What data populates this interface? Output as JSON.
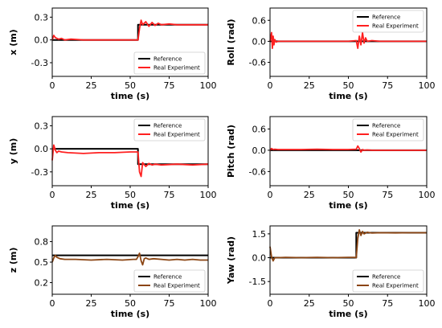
{
  "chart_data": [
    {
      "type": "line",
      "ylabel": "x (m)",
      "xlabel": "time (s)",
      "xlim": [
        0,
        100
      ],
      "ylim": [
        -0.48,
        0.42
      ],
      "xticks": [
        "0",
        "25",
        "50",
        "75",
        "100"
      ],
      "yticks": [
        "-0.3",
        "0.0",
        "0.3"
      ],
      "ytick_values": [
        -0.3,
        0.0,
        0.3
      ],
      "legend": "bottom-right",
      "grid": false,
      "series": [
        {
          "name": "Reference",
          "color": "#000000",
          "x": [
            0,
            55,
            55,
            100
          ],
          "y": [
            0.0,
            0.0,
            0.2,
            0.2
          ]
        },
        {
          "name": "Real Experiment",
          "color": "#ff2020",
          "x": [
            0,
            1,
            2,
            4,
            6,
            8,
            12,
            20,
            30,
            40,
            50,
            54,
            55,
            56,
            57,
            58,
            60,
            62,
            64,
            66,
            68,
            70,
            75,
            80,
            90,
            100
          ],
          "y": [
            0.0,
            0.06,
            0.03,
            0.01,
            0.02,
            0.0,
            0.01,
            0.0,
            0.0,
            0.0,
            0.0,
            0.0,
            0.0,
            0.15,
            0.26,
            0.2,
            0.24,
            0.18,
            0.23,
            0.19,
            0.22,
            0.2,
            0.21,
            0.2,
            0.2,
            0.2
          ]
        }
      ]
    },
    {
      "type": "line",
      "ylabel": "Roll (rad)",
      "xlabel": "time (s)",
      "xlim": [
        0,
        100
      ],
      "ylim": [
        -1.0,
        0.95
      ],
      "xticks": [
        "0",
        "25",
        "50",
        "75",
        "100"
      ],
      "yticks": [
        "-0.6",
        "0.0",
        "0.6"
      ],
      "ytick_values": [
        -0.6,
        0.0,
        0.6
      ],
      "legend": "top-right",
      "grid": false,
      "series": [
        {
          "name": "Reference",
          "color": "#000000",
          "x": [
            0,
            100
          ],
          "y": [
            0.0,
            0.0
          ]
        },
        {
          "name": "Real Experiment",
          "color": "#ff2020",
          "x": [
            0,
            1,
            1.5,
            2,
            2.5,
            3,
            4,
            5,
            10,
            20,
            30,
            40,
            50,
            55,
            56,
            57,
            58,
            59,
            60,
            61,
            62,
            65,
            70,
            80,
            90,
            100
          ],
          "y": [
            0.0,
            0.25,
            -0.2,
            0.15,
            -0.1,
            0.05,
            -0.02,
            0.0,
            0.0,
            0.0,
            0.0,
            0.0,
            0.0,
            0.02,
            -0.2,
            0.15,
            -0.1,
            0.25,
            -0.05,
            0.1,
            0.0,
            0.02,
            0.0,
            0.0,
            0.0,
            0.0
          ]
        }
      ]
    },
    {
      "type": "line",
      "ylabel": "y (m)",
      "xlabel": "time (s)",
      "xlim": [
        0,
        100
      ],
      "ylim": [
        -0.48,
        0.42
      ],
      "xticks": [
        "0",
        "25",
        "50",
        "75",
        "100"
      ],
      "yticks": [
        "-0.3",
        "0.0",
        "0.3"
      ],
      "ytick_values": [
        -0.3,
        0.0,
        0.3
      ],
      "legend": "top-right",
      "grid": false,
      "series": [
        {
          "name": "Reference",
          "color": "#000000",
          "x": [
            0,
            55,
            55,
            100
          ],
          "y": [
            0.0,
            0.0,
            -0.2,
            -0.2
          ]
        },
        {
          "name": "Real Experiment",
          "color": "#ff2020",
          "x": [
            0,
            1,
            2,
            3,
            4,
            6,
            10,
            20,
            30,
            40,
            50,
            54,
            55,
            56,
            57,
            58,
            60,
            62,
            64,
            66,
            70,
            80,
            90,
            100
          ],
          "y": [
            -0.15,
            0.05,
            -0.02,
            -0.05,
            -0.03,
            -0.04,
            -0.05,
            -0.06,
            -0.05,
            -0.05,
            -0.04,
            -0.04,
            -0.04,
            -0.3,
            -0.36,
            -0.18,
            -0.23,
            -0.19,
            -0.21,
            -0.2,
            -0.21,
            -0.2,
            -0.21,
            -0.2
          ]
        }
      ]
    },
    {
      "type": "line",
      "ylabel": "Pitch (rad)",
      "xlabel": "time (s)",
      "xlim": [
        0,
        100
      ],
      "ylim": [
        -1.0,
        0.95
      ],
      "xticks": [
        "0",
        "25",
        "50",
        "75",
        "100"
      ],
      "yticks": [
        "-0.6",
        "0.0",
        "0.6"
      ],
      "ytick_values": [
        -0.6,
        0.0,
        0.6
      ],
      "legend": "top-right",
      "grid": false,
      "series": [
        {
          "name": "Reference",
          "color": "#000000",
          "x": [
            0,
            100
          ],
          "y": [
            0.0,
            0.0
          ]
        },
        {
          "name": "Real Experiment",
          "color": "#ff2020",
          "x": [
            0,
            1,
            2,
            3,
            5,
            10,
            20,
            30,
            40,
            50,
            55,
            56,
            57,
            58,
            59,
            60,
            62,
            65,
            70,
            80,
            90,
            100
          ],
          "y": [
            0.0,
            0.05,
            0.02,
            0.03,
            0.02,
            0.02,
            0.02,
            0.03,
            0.02,
            0.02,
            0.03,
            0.12,
            0.05,
            -0.05,
            0.02,
            0.0,
            0.01,
            0.0,
            0.0,
            0.0,
            0.0,
            0.0
          ]
        }
      ]
    },
    {
      "type": "line",
      "ylabel": "z (m)",
      "xlabel": "time (s)",
      "xlim": [
        0,
        100
      ],
      "ylim": [
        0.03,
        1.03
      ],
      "xticks": [
        "0",
        "25",
        "50",
        "75",
        "100"
      ],
      "yticks": [
        "0.2",
        "0.5",
        "0.8"
      ],
      "ytick_values": [
        0.2,
        0.5,
        0.8
      ],
      "legend": "bottom-right",
      "grid": false,
      "series": [
        {
          "name": "Reference",
          "color": "#000000",
          "x": [
            0,
            100
          ],
          "y": [
            0.6,
            0.6
          ]
        },
        {
          "name": "Real Experiment",
          "color": "#8b4513",
          "x": [
            0,
            1,
            2,
            3,
            5,
            8,
            15,
            25,
            35,
            45,
            52,
            54,
            55,
            56,
            57,
            58,
            59,
            60,
            62,
            65,
            70,
            75,
            80,
            85,
            90,
            95,
            100
          ],
          "y": [
            0.5,
            0.56,
            0.6,
            0.57,
            0.55,
            0.54,
            0.54,
            0.53,
            0.54,
            0.53,
            0.54,
            0.54,
            0.58,
            0.63,
            0.52,
            0.46,
            0.55,
            0.56,
            0.54,
            0.55,
            0.54,
            0.53,
            0.54,
            0.53,
            0.54,
            0.53,
            0.53
          ]
        }
      ]
    },
    {
      "type": "line",
      "ylabel": "Yaw (rad)",
      "xlabel": "time (s)",
      "xlim": [
        0,
        100
      ],
      "ylim": [
        -2.3,
        2.0
      ],
      "xticks": [
        "0",
        "25",
        "50",
        "75",
        "100"
      ],
      "yticks": [
        "-1.5",
        "0.0",
        "1.5"
      ],
      "ytick_values": [
        -1.5,
        0.0,
        1.5
      ],
      "legend": "bottom-right",
      "grid": false,
      "series": [
        {
          "name": "Reference",
          "color": "#000000",
          "x": [
            0,
            55,
            55,
            100
          ],
          "y": [
            0.0,
            0.0,
            1.57,
            1.57
          ]
        },
        {
          "name": "Real Experiment",
          "color": "#8b4513",
          "x": [
            0,
            1,
            2,
            3,
            5,
            10,
            20,
            30,
            40,
            50,
            54,
            55,
            56,
            57,
            58,
            59,
            60,
            62,
            65,
            70,
            80,
            90,
            100
          ],
          "y": [
            0.7,
            0.05,
            -0.2,
            0.0,
            0.0,
            0.02,
            0.0,
            0.02,
            0.0,
            0.02,
            0.02,
            0.0,
            1.2,
            1.75,
            1.4,
            1.65,
            1.5,
            1.6,
            1.55,
            1.57,
            1.56,
            1.57,
            1.57
          ]
        }
      ]
    }
  ]
}
